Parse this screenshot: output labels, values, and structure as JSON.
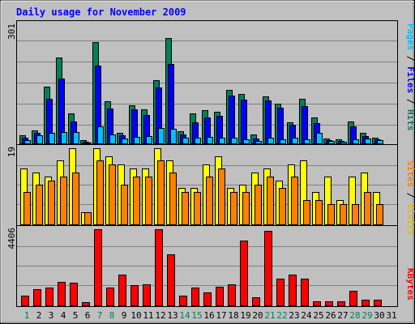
{
  "chart_data": [
    {
      "type": "bar",
      "title": "Daily usage for November 2009",
      "panel": "hits",
      "y_max_label": "301",
      "side_label": {
        "pages": "Pages",
        "files": "Files",
        "hits": "Hits",
        "sep": " / "
      },
      "x": [
        1,
        2,
        3,
        4,
        5,
        6,
        7,
        8,
        9,
        10,
        11,
        12,
        13,
        14,
        15,
        16,
        17,
        18,
        19,
        20,
        21,
        22,
        23,
        24,
        25,
        26,
        27,
        28,
        29,
        30,
        31
      ],
      "weekend_days": [
        1,
        7,
        8,
        14,
        15,
        21,
        22,
        28,
        29
      ],
      "ylim": [
        0,
        301
      ],
      "series": [
        {
          "name": "Hits",
          "values": [
            20,
            33,
            144,
            218,
            76,
            8,
            256,
            106,
            27,
            96,
            86,
            159,
            267,
            30,
            75,
            84,
            80,
            135,
            125,
            22,
            118,
            100,
            54,
            112,
            66,
            13,
            11,
            56,
            26,
            15,
            0
          ]
        },
        {
          "name": "Files",
          "values": [
            14,
            26,
            112,
            163,
            56,
            4,
            196,
            88,
            20,
            86,
            72,
            142,
            200,
            22,
            54,
            66,
            70,
            120,
            110,
            12,
            108,
            90,
            48,
            94,
            52,
            9,
            7,
            44,
            18,
            11,
            0
          ]
        },
        {
          "name": "Pages",
          "values": [
            8,
            20,
            26,
            29,
            28,
            2,
            44,
            22,
            12,
            16,
            18,
            38,
            36,
            14,
            14,
            16,
            14,
            15,
            10,
            6,
            14,
            10,
            14,
            10,
            26,
            7,
            5,
            10,
            12,
            9,
            0
          ]
        }
      ]
    },
    {
      "type": "bar",
      "panel": "visits",
      "y_max_label": "19",
      "side_label": {
        "sites": "Sites",
        "visits": "Visits",
        "sep": " / "
      },
      "x": [
        1,
        2,
        3,
        4,
        5,
        6,
        7,
        8,
        9,
        10,
        11,
        12,
        13,
        14,
        15,
        16,
        17,
        18,
        19,
        20,
        21,
        22,
        23,
        24,
        25,
        26,
        27,
        28,
        29,
        30,
        31
      ],
      "ylim": [
        0,
        19
      ],
      "series": [
        {
          "name": "Visits",
          "values": [
            14,
            13,
            12,
            16,
            19,
            3,
            19,
            17,
            15,
            14,
            14,
            19,
            16,
            9,
            9,
            15,
            17,
            9,
            10,
            13,
            14,
            11,
            15,
            16,
            8,
            12,
            6,
            12,
            13,
            8,
            0
          ]
        },
        {
          "name": "Sites",
          "values": [
            8,
            10,
            11,
            12,
            13,
            3,
            16,
            15,
            10,
            12,
            12,
            16,
            13,
            8,
            8,
            12,
            14,
            8,
            8,
            10,
            12,
            9,
            12,
            6,
            6,
            5,
            5,
            5,
            8,
            5,
            0
          ]
        }
      ]
    },
    {
      "type": "bar",
      "panel": "kbytes",
      "y_max_label": "4406",
      "side_label": {
        "kbytes": "KBytes"
      },
      "x": [
        1,
        2,
        3,
        4,
        5,
        6,
        7,
        8,
        9,
        10,
        11,
        12,
        13,
        14,
        15,
        16,
        17,
        18,
        19,
        20,
        21,
        22,
        23,
        24,
        25,
        26,
        27,
        28,
        29,
        30,
        31
      ],
      "ylim": [
        0,
        4406
      ],
      "series": [
        {
          "name": "KBytes",
          "values": [
            550,
            940,
            1030,
            1360,
            1290,
            200,
            4406,
            1040,
            1800,
            1170,
            1230,
            4406,
            2960,
            540,
            1020,
            770,
            1090,
            1230,
            3770,
            470,
            4300,
            1530,
            1800,
            1570,
            230,
            240,
            230,
            830,
            330,
            330,
            0
          ]
        }
      ]
    }
  ],
  "colors": {
    "bg": "#c0c0c0",
    "border": "#000000",
    "title": "#0000ff",
    "grid": "#808080",
    "hits": "#00805c",
    "files": "#0000ff",
    "pages": "#00c0ff",
    "visits": "#ffff00",
    "sites": "#ff8000",
    "kbytes": "#ff0000",
    "weekday_label": "#000000",
    "weekend_label": "#00805c"
  }
}
